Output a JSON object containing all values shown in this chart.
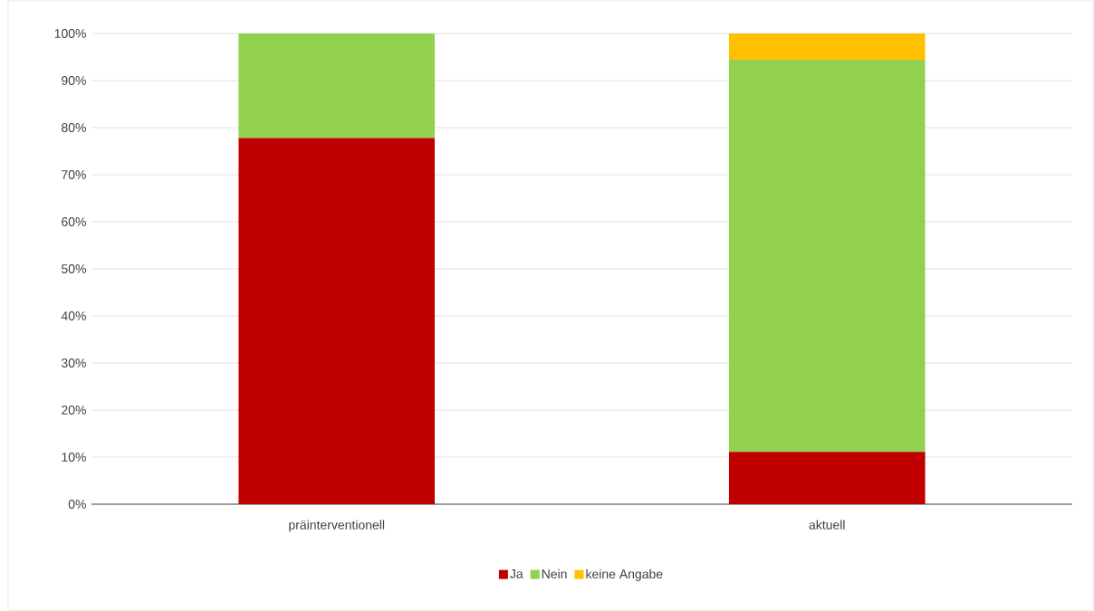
{
  "chart_data": {
    "type": "bar",
    "stacked": true,
    "categories": [
      "präinterventionell",
      "aktuell"
    ],
    "series": [
      {
        "name": "Ja",
        "color": "#c00000",
        "values": [
          77.8,
          11.1
        ]
      },
      {
        "name": "Nein",
        "color": "#92d050",
        "values": [
          22.2,
          83.3
        ]
      },
      {
        "name": "keine Angabe",
        "color": "#ffc000",
        "values": [
          0,
          5.6
        ]
      }
    ],
    "ylim": [
      0,
      100
    ],
    "yticks": [
      {
        "value": 0,
        "label": "0%"
      },
      {
        "value": 10,
        "label": "10%"
      },
      {
        "value": 20,
        "label": "20%"
      },
      {
        "value": 30,
        "label": "30%"
      },
      {
        "value": 40,
        "label": "40%"
      },
      {
        "value": 50,
        "label": "50%"
      },
      {
        "value": 60,
        "label": "60%"
      },
      {
        "value": 70,
        "label": "70%"
      },
      {
        "value": 80,
        "label": "80%"
      },
      {
        "value": 90,
        "label": "90%"
      },
      {
        "value": 100,
        "label": "100%"
      }
    ],
    "grid": "y",
    "legend": "bottom"
  }
}
